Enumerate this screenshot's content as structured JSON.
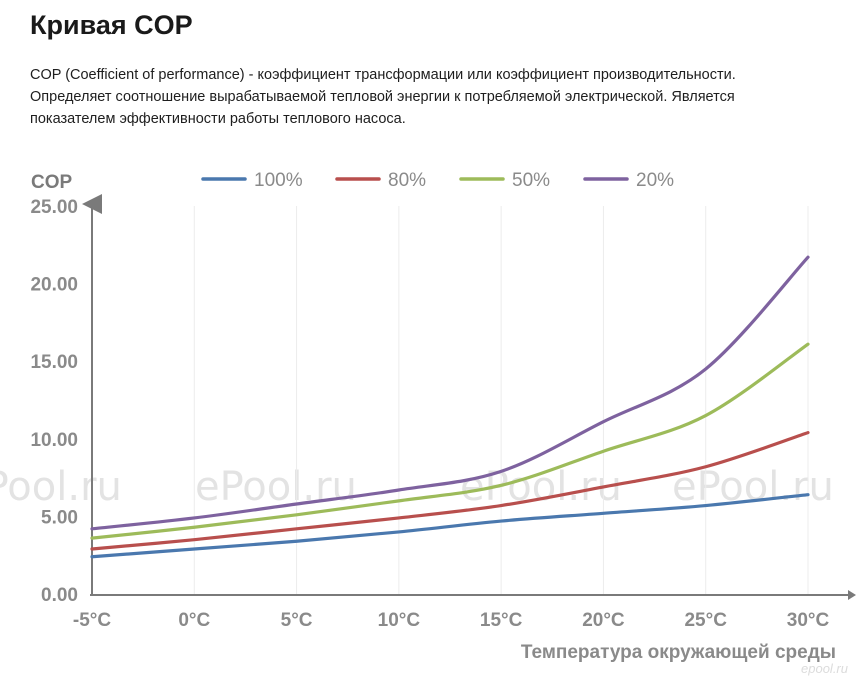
{
  "page": {
    "title": "Кривая COP",
    "description_lines": [
      "COP (Coefficient of performance) - коэффициент трансформации или коэффициент производительности.",
      "Определяет соотношение вырабатываемой тепловой энергии к потребляемой электрической. Является",
      "показателем эффективности работы теплового насоса."
    ],
    "watermark": "ePool.ru",
    "watermark_small": "epool.ru"
  },
  "chart_data": {
    "type": "line",
    "ylabel": "COP",
    "xlabel": "Температура окружающей среды",
    "ylim": [
      0,
      25
    ],
    "y_ticks": [
      "0.00",
      "5.00",
      "10.00",
      "15.00",
      "20.00",
      "25.00"
    ],
    "y_tick_values": [
      0,
      5,
      10,
      15,
      20,
      25
    ],
    "categories": [
      "-5°C",
      "0°C",
      "5°C",
      "10°C",
      "15°C",
      "20°C",
      "25°C",
      "30°C"
    ],
    "x": [
      -5,
      0,
      5,
      10,
      15,
      20,
      25,
      30
    ],
    "grid": "vertical",
    "legend_position": "top",
    "series": [
      {
        "name": "100%",
        "color": "#4a78ae",
        "values": [
          2.4,
          2.9,
          3.4,
          4.0,
          4.7,
          5.2,
          5.7,
          6.4
        ]
      },
      {
        "name": "80%",
        "color": "#b84f4d",
        "values": [
          2.9,
          3.5,
          4.2,
          4.9,
          5.7,
          6.9,
          8.2,
          10.4
        ]
      },
      {
        "name": "50%",
        "color": "#9dbb5a",
        "values": [
          3.6,
          4.3,
          5.1,
          6.0,
          7.0,
          9.2,
          11.5,
          16.1
        ]
      },
      {
        "name": "20%",
        "color": "#7e629f",
        "values": [
          4.2,
          4.9,
          5.8,
          6.7,
          7.9,
          11.1,
          14.5,
          21.7
        ]
      }
    ]
  }
}
